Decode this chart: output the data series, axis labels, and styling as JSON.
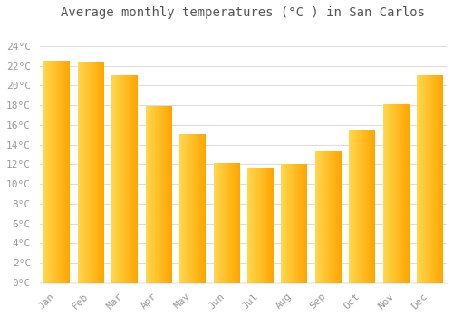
{
  "title": "Average monthly temperatures (°C ) in San Carlos",
  "months": [
    "Jan",
    "Feb",
    "Mar",
    "Apr",
    "May",
    "Jun",
    "Jul",
    "Aug",
    "Sep",
    "Oct",
    "Nov",
    "Dec"
  ],
  "values": [
    22.5,
    22.3,
    21.0,
    17.9,
    15.0,
    12.1,
    11.6,
    12.0,
    13.3,
    15.5,
    18.1,
    21.0
  ],
  "bar_color_left": "#FFD84D",
  "bar_color_right": "#FFA500",
  "ylim": [
    0,
    26
  ],
  "yticks": [
    0,
    2,
    4,
    6,
    8,
    10,
    12,
    14,
    16,
    18,
    20,
    22,
    24
  ],
  "background_color": "#FFFFFF",
  "grid_color": "#DDDDDD",
  "title_fontsize": 10,
  "tick_fontsize": 8,
  "font_family": "monospace"
}
